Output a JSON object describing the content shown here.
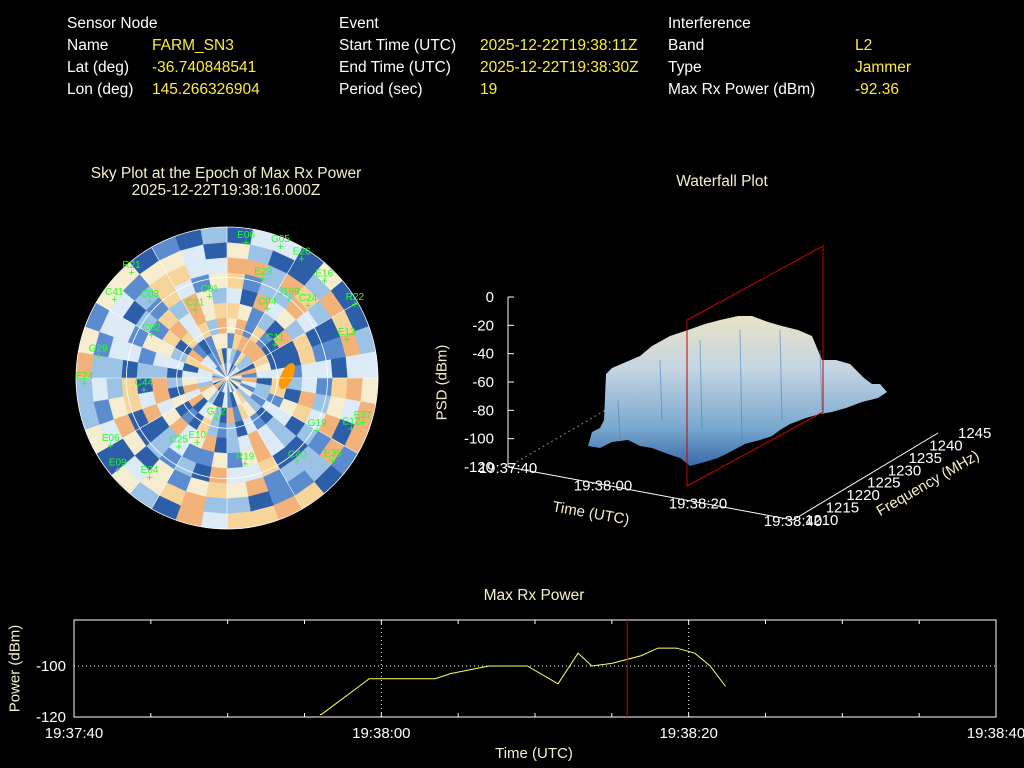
{
  "header": {
    "sensor": {
      "heading": "Sensor Node",
      "name_label": "Name",
      "name": "FARM_SN3",
      "lat_label": "Lat (deg)",
      "lat": "-36.740848541",
      "lon_label": "Lon (deg)",
      "lon": "145.266326904"
    },
    "event": {
      "heading": "Event",
      "start_label": "Start Time (UTC)",
      "start": "2025-12-22T19:38:11Z",
      "end_label": "End Time (UTC)",
      "end": "2025-12-22T19:38:30Z",
      "period_label": "Period (sec)",
      "period": "19"
    },
    "interference": {
      "heading": "Interference",
      "band_label": "Band",
      "band": "L2",
      "type_label": "Type",
      "type": "Jammer",
      "power_label": "Max Rx Power (dBm)",
      "power": "-92.36"
    }
  },
  "colors": {
    "label": "#ffffff",
    "value": "#ffeb3b",
    "title": "#f5f0c8",
    "satellite": "#22ff22",
    "marker": "#cc0000",
    "trace": "#ffff66",
    "orange": "#ff9900"
  },
  "chart_data": [
    {
      "type": "polar-heatmap",
      "title": "Sky Plot at the Epoch of Max Rx Power",
      "subtitle": "2025-12-22T19:38:16.000Z",
      "satellites": [
        {
          "id": "E06",
          "az": 8,
          "el": 8
        },
        {
          "id": "G05",
          "az": 22,
          "el": 5
        },
        {
          "id": "E26",
          "az": 32,
          "el": 6
        },
        {
          "id": "E29",
          "az": 20,
          "el": 27
        },
        {
          "id": "C04",
          "az": 30,
          "el": 42
        },
        {
          "id": "J199",
          "az": 38,
          "el": 30
        },
        {
          "id": "C24",
          "az": 48,
          "el": 25
        },
        {
          "id": "E16",
          "az": 45,
          "el": 8
        },
        {
          "id": "R22",
          "az": 60,
          "el": 2
        },
        {
          "id": "E13",
          "az": 72,
          "el": 15
        },
        {
          "id": "C11",
          "az": 55,
          "el": 55
        },
        {
          "id": "G19",
          "az": 120,
          "el": 28
        },
        {
          "id": "E37",
          "az": 108,
          "el": 5
        },
        {
          "id": "E12",
          "az": 112,
          "el": 10
        },
        {
          "id": "E35",
          "az": 128,
          "el": 10
        },
        {
          "id": "C40",
          "az": 140,
          "el": 25
        },
        {
          "id": "R19",
          "az": 168,
          "el": 38
        },
        {
          "id": "G12",
          "az": 195,
          "el": 65
        },
        {
          "id": "E10",
          "az": 205,
          "el": 48
        },
        {
          "id": "C25",
          "az": 215,
          "el": 40
        },
        {
          "id": "E04",
          "az": 218,
          "el": 15
        },
        {
          "id": "E09",
          "az": 230,
          "el": 5
        },
        {
          "id": "E06b",
          "az": 240,
          "el": 10
        },
        {
          "id": "C44",
          "az": 262,
          "el": 40
        },
        {
          "id": "E24",
          "az": 268,
          "el": 5
        },
        {
          "id": "G29",
          "az": 280,
          "el": 12
        },
        {
          "id": "C41",
          "az": 305,
          "el": 8
        },
        {
          "id": "C03",
          "az": 315,
          "el": 25
        },
        {
          "id": "C01",
          "az": 348,
          "el": 40
        },
        {
          "id": "R21",
          "az": 318,
          "el": 5
        },
        {
          "id": "C02",
          "az": 300,
          "el": 38
        },
        {
          "id": "C21",
          "az": 335,
          "el": 45
        }
      ]
    },
    {
      "type": "surface-3d",
      "title": "Waterfall Plot",
      "zlabel": "PSD (dBm)",
      "zlim": [
        -120,
        0
      ],
      "zticks": [
        "0",
        "-20",
        "-40",
        "-60",
        "-80",
        "-100",
        "-120"
      ],
      "xlabel": "Time (UTC)",
      "xticks": [
        "19:37:40",
        "19:38:00",
        "19:38:20",
        "19:38:40"
      ],
      "ylabel": "Frequency (MHz)",
      "yticks": [
        "1210",
        "1215",
        "1220",
        "1225",
        "1230",
        "1235",
        "1240",
        "1245"
      ],
      "epoch_marker": "19:38:16"
    },
    {
      "type": "line",
      "title": "Max Rx Power",
      "xlabel": "Time (UTC)",
      "ylabel": "Power (dBm)",
      "xticks": [
        "19:37:40",
        "19:38:00",
        "19:38:20",
        "19:38:40"
      ],
      "yticks": [
        "-100",
        "-120"
      ],
      "xlim_sec": [
        0,
        60
      ],
      "ylim": [
        -120,
        -82
      ],
      "marker_sec": 36,
      "x_sec": [
        16,
        16.1,
        19,
        19.2,
        23.5,
        24.5,
        27,
        29.5,
        31.5,
        32.8,
        33.7,
        35,
        36.9,
        38,
        39.2,
        40.4,
        41.4,
        42.4
      ],
      "values": [
        -119,
        -119,
        -106,
        -105,
        -105,
        -103,
        -100,
        -100,
        -107,
        -95,
        -100,
        -99,
        -96,
        -93,
        -93,
        -95,
        -100,
        -108
      ]
    }
  ]
}
